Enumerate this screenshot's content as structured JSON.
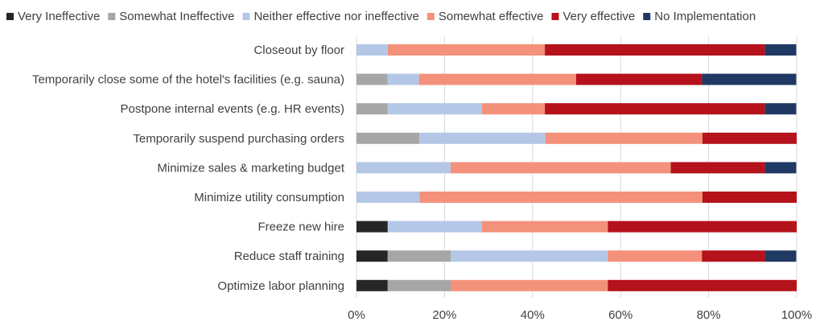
{
  "chart_data": {
    "type": "bar",
    "orientation": "horizontal",
    "stacked": "percent",
    "title": "",
    "xlabel": "",
    "ylabel": "",
    "xlim": [
      0,
      100
    ],
    "x_ticks": [
      "0%",
      "20%",
      "40%",
      "60%",
      "80%",
      "100%"
    ],
    "grid": "vertical",
    "legend_position": "top",
    "categories": [
      "Closeout by floor",
      "Temporarily close some of the hotel's facilities (e.g. sauna)",
      "Postpone internal events (e.g. HR events)",
      "Temporarily suspend purchasing orders",
      "Minimize sales & marketing budget",
      "Minimize utility consumption",
      "Freeze new hire",
      "Reduce staff training",
      "Optimize labor planning"
    ],
    "series": [
      {
        "name": "Very Ineffective",
        "color": "#262626",
        "values": [
          0,
          0,
          0,
          0,
          0,
          0,
          7.1,
          7.1,
          7.1
        ]
      },
      {
        "name": "Somewhat Ineffective",
        "color": "#a6a6a6",
        "values": [
          0,
          7.1,
          7.1,
          14.3,
          0,
          0,
          0,
          14.3,
          14.3
        ]
      },
      {
        "name": "Neither effective nor ineffective",
        "color": "#b4c7e7",
        "values": [
          7.1,
          7.1,
          21.4,
          28.6,
          21.4,
          14.3,
          21.4,
          35.7,
          0
        ]
      },
      {
        "name": "Somewhat effective",
        "color": "#f4917b",
        "values": [
          35.7,
          35.7,
          14.3,
          35.7,
          50.0,
          64.3,
          28.6,
          21.4,
          35.7
        ]
      },
      {
        "name": "Very effective",
        "color": "#b5121b",
        "values": [
          50.0,
          28.6,
          50.0,
          21.4,
          21.4,
          21.4,
          42.9,
          14.3,
          42.9
        ]
      },
      {
        "name": "No Implementation",
        "color": "#203864",
        "values": [
          7.1,
          21.4,
          7.1,
          0,
          7.1,
          0,
          0,
          7.1,
          0
        ]
      }
    ]
  }
}
